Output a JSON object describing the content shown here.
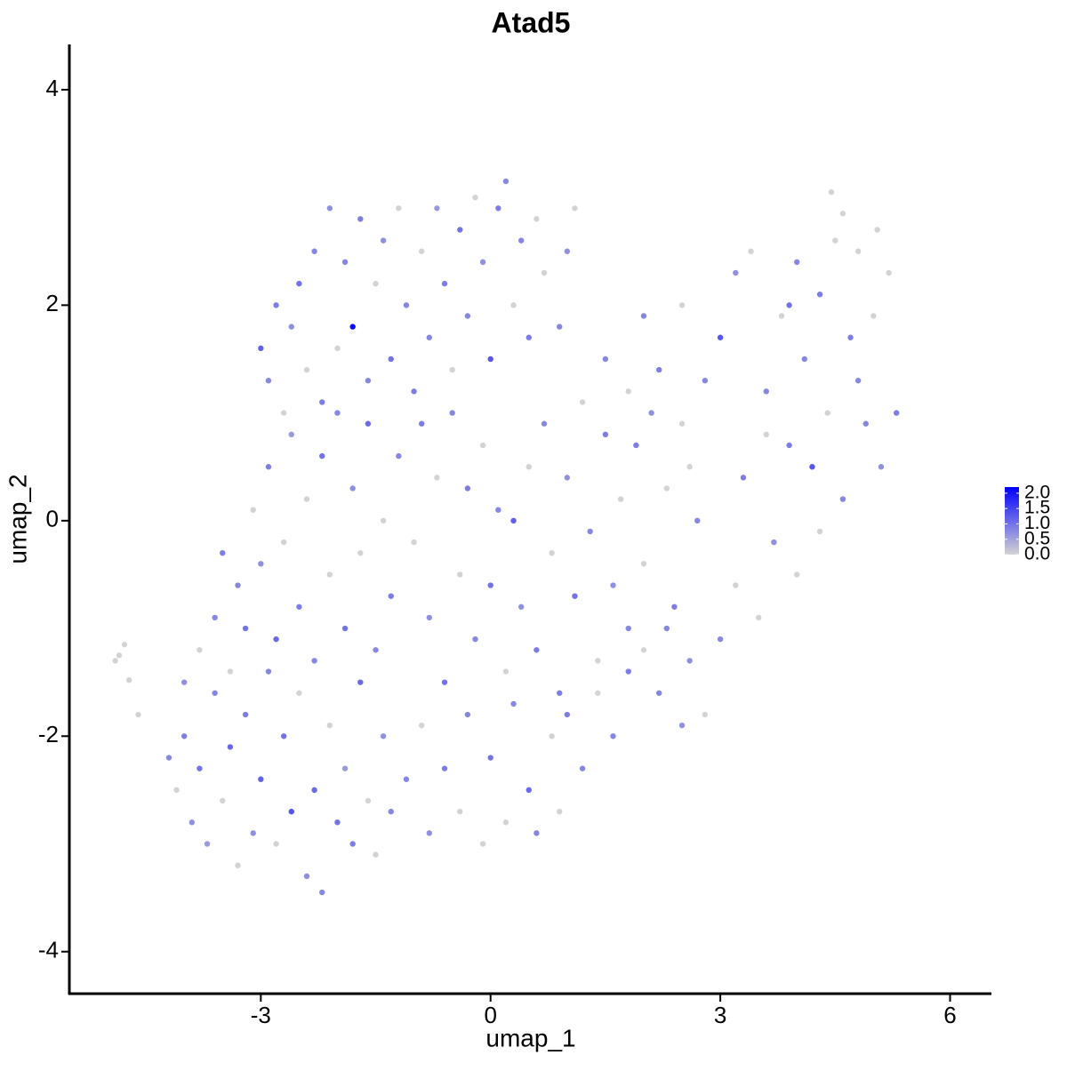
{
  "chart_data": {
    "type": "scatter",
    "title": "Atad5",
    "x_label": "umap_1",
    "y_label": "umap_2",
    "xlim": [
      -5.5,
      6.54
    ],
    "ylim": [
      -4.39,
      4.42
    ],
    "xticks": [
      -3,
      0,
      3,
      6
    ],
    "yticks": [
      -4,
      -2,
      0,
      2,
      4
    ],
    "grid": false,
    "low_color": "#d3d3d3",
    "high_color": "#0000ff",
    "color_lim": [
      0,
      2.2
    ],
    "color_ticks": [
      {
        "value": 0,
        "label": "0.0"
      },
      {
        "value": 0.5,
        "label": "0.5"
      },
      {
        "value": 1,
        "label": "1.0"
      },
      {
        "value": 1.5,
        "label": "1.5"
      },
      {
        "value": 2,
        "label": "2.0"
      }
    ],
    "x": [
      -4.85,
      -4.78,
      -4.72,
      -4.6,
      -4.9,
      -4.2,
      -4.1,
      -4.0,
      -3.9,
      -3.8,
      -3.7,
      -3.6,
      -3.5,
      -3.4,
      -3.3,
      -3.2,
      -3.1,
      -3.0,
      -2.9,
      -2.8,
      -2.7,
      -2.6,
      -2.5,
      -2.4,
      -2.3,
      -2.2,
      -2.1,
      -2.0,
      -1.9,
      -1.8,
      -1.7,
      -1.6,
      -1.5,
      -1.4,
      -1.3,
      -4.0,
      -3.8,
      -3.6,
      -3.5,
      -3.4,
      -3.3,
      -3.2,
      -3.1,
      -3.0,
      -2.9,
      -2.8,
      -2.7,
      -2.6,
      -2.5,
      -2.4,
      -2.3,
      -2.2,
      -2.1,
      -2.0,
      -1.9,
      -1.8,
      -1.7,
      -1.6,
      -1.5,
      -1.4,
      -1.3,
      -3.0,
      -2.9,
      -2.8,
      -2.7,
      -2.6,
      -2.5,
      -2.4,
      -2.3,
      -2.2,
      -2.1,
      -2.0,
      -1.9,
      -1.8,
      -1.7,
      -1.6,
      -1.5,
      -1.4,
      -1.3,
      -1.2,
      -1.1,
      -1.0,
      -0.9,
      -0.8,
      -0.7,
      -0.6,
      -0.5,
      -0.4,
      -0.3,
      -0.2,
      -0.1,
      0.0,
      0.1,
      0.2,
      0.3,
      0.4,
      0.5,
      0.6,
      0.7,
      0.9,
      1.1,
      1.0,
      -1.2,
      -1.0,
      -0.9,
      -0.8,
      -0.7,
      -0.6,
      -0.5,
      -0.4,
      -0.3,
      -0.2,
      -0.1,
      0.0,
      0.1,
      0.2,
      0.3,
      0.4,
      0.5,
      0.6,
      0.7,
      0.8,
      0.9,
      1.0,
      1.1,
      1.2,
      1.3,
      1.4,
      1.5,
      1.6,
      1.7,
      1.8,
      1.9,
      2.0,
      2.1,
      2.2,
      2.3,
      2.4,
      2.5,
      2.6,
      2.7,
      2.8,
      -1.1,
      -0.9,
      -0.8,
      -0.6,
      -0.4,
      -0.3,
      -0.1,
      0.0,
      0.2,
      0.3,
      0.5,
      0.6,
      0.8,
      0.9,
      1.0,
      1.2,
      1.4,
      1.6,
      1.8,
      2.0,
      2.3,
      2.5,
      3.0,
      3.2,
      3.3,
      3.5,
      3.6,
      3.7,
      3.8,
      3.9,
      4.0,
      4.1,
      4.2,
      4.3,
      4.4,
      4.5,
      4.6,
      4.7,
      4.8,
      4.9,
      5.0,
      5.1,
      5.2,
      5.3,
      4.45,
      4.6,
      3.0,
      3.2,
      2.8,
      2.5,
      2.2,
      2.0,
      1.8,
      3.4,
      4.0,
      3.6,
      4.8,
      5.05,
      4.3,
      3.9,
      2.6,
      1.5
    ],
    "y": [
      -1.25,
      -1.15,
      -1.48,
      -1.8,
      -1.3,
      -2.2,
      -2.5,
      -2.0,
      -2.8,
      -2.3,
      -3.0,
      -1.6,
      -2.6,
      -2.1,
      -3.2,
      -1.8,
      -2.9,
      -2.4,
      -1.4,
      -3.0,
      -2.0,
      -2.7,
      -1.6,
      -3.3,
      -2.5,
      -3.45,
      -1.9,
      -2.8,
      -2.3,
      -3.0,
      -1.5,
      -2.6,
      -3.1,
      -2.0,
      -2.7,
      -1.5,
      -1.2,
      -0.9,
      -0.3,
      -1.4,
      -0.6,
      -1.0,
      0.1,
      -0.4,
      0.5,
      -1.1,
      -0.2,
      0.8,
      -0.8,
      0.2,
      -1.3,
      0.6,
      -0.5,
      1.0,
      -1.0,
      0.3,
      -0.3,
      0.9,
      -1.2,
      0.0,
      -0.7,
      1.6,
      1.3,
      2.0,
      1.0,
      1.8,
      2.2,
      1.4,
      2.5,
      1.1,
      2.9,
      1.6,
      2.4,
      1.8,
      2.8,
      1.3,
      2.2,
      2.6,
      1.5,
      2.9,
      2.0,
      1.2,
      2.5,
      1.7,
      2.9,
      2.2,
      1.4,
      2.7,
      1.9,
      3.0,
      2.4,
      1.5,
      2.9,
      3.15,
      2.0,
      2.6,
      1.7,
      2.8,
      2.3,
      1.8,
      2.9,
      2.5,
      0.6,
      -0.2,
      0.9,
      -0.9,
      0.4,
      -1.5,
      1.0,
      -0.5,
      0.3,
      -1.1,
      0.7,
      -0.6,
      0.1,
      -1.4,
      0.0,
      -0.8,
      0.5,
      -1.2,
      0.9,
      -0.3,
      -1.6,
      0.4,
      -0.7,
      1.1,
      -0.1,
      -1.3,
      0.8,
      -0.6,
      0.2,
      -1.0,
      0.7,
      -0.4,
      1.0,
      -1.6,
      0.3,
      -0.8,
      0.9,
      -1.3,
      0.0,
      -1.8,
      -2.4,
      -1.9,
      -2.9,
      -2.3,
      -2.7,
      -1.8,
      -3.0,
      -2.2,
      -2.8,
      -1.7,
      -2.5,
      -2.9,
      -2.0,
      -2.7,
      -1.8,
      -2.3,
      -1.6,
      -2.0,
      -1.4,
      -1.2,
      -1.0,
      -1.9,
      -1.1,
      -0.6,
      0.4,
      -0.9,
      1.2,
      -0.2,
      1.9,
      0.7,
      -0.5,
      1.5,
      0.5,
      2.1,
      1.0,
      2.6,
      0.2,
      1.7,
      2.5,
      0.9,
      1.9,
      0.5,
      2.3,
      1.0,
      3.05,
      2.85,
      1.7,
      2.3,
      1.3,
      2.0,
      1.4,
      1.9,
      1.2,
      2.5,
      2.4,
      0.8,
      1.3,
      2.7,
      -0.1,
      2.0,
      0.5,
      1.5
    ],
    "values": [
      0,
      0,
      0,
      0,
      0,
      0.8,
      0,
      0.9,
      0.7,
      1.0,
      0.6,
      0.8,
      0,
      1.1,
      0,
      0.9,
      0.7,
      1.2,
      0.8,
      0,
      1.0,
      1.3,
      0,
      0.7,
      1.1,
      0.8,
      0,
      1.0,
      0.6,
      0.9,
      1.1,
      0,
      0,
      0.7,
      0.8,
      0.7,
      0,
      0.8,
      0.9,
      0,
      0.8,
      1.0,
      0,
      0.7,
      0.9,
      1.1,
      0,
      0.6,
      0.9,
      0,
      0.8,
      1.0,
      0,
      0.8,
      1.0,
      0.7,
      0,
      1.1,
      0.8,
      0,
      0.9,
      1.2,
      0.8,
      0.9,
      0,
      0.7,
      1.0,
      0,
      0.8,
      0.9,
      0.7,
      0,
      0.8,
      2.1,
      0.9,
      0.8,
      0,
      0.7,
      1.0,
      0,
      0.8,
      0.9,
      0,
      0.8,
      0.6,
      0.9,
      0,
      1.0,
      0.8,
      0,
      0.7,
      1.3,
      0.9,
      0.8,
      0,
      0.8,
      0.9,
      0,
      0,
      0.8,
      0,
      0.7,
      0.8,
      0,
      0.9,
      0.7,
      0,
      1.0,
      0.8,
      0,
      0.9,
      0.8,
      0,
      1.0,
      0.8,
      0,
      1.2,
      0.7,
      0,
      0.9,
      0.8,
      0,
      0.9,
      0.7,
      1.0,
      0,
      0.8,
      0,
      0.9,
      0.7,
      0,
      0.8,
      0.9,
      0,
      0.7,
      0.8,
      0,
      0.9,
      0,
      0.7,
      0.8,
      0,
      0.8,
      0,
      0.7,
      0.9,
      0,
      0.8,
      0,
      1.0,
      0,
      0.8,
      1.1,
      0.8,
      0,
      0,
      0.9,
      0.8,
      0,
      0.8,
      0.9,
      0,
      0.8,
      0.7,
      0.8,
      0,
      0.9,
      0,
      0.8,
      0.7,
      0,
      0.9,
      0,
      0.8,
      1.3,
      0.9,
      0,
      0,
      0.8,
      0.9,
      0,
      0.8,
      0,
      0.7,
      0,
      0.9,
      0,
      0,
      1.3,
      0.7,
      0.8,
      0,
      0.9,
      0.8,
      0,
      0,
      0.8,
      0,
      0.8,
      0,
      0,
      1.0,
      0,
      0.8
    ]
  }
}
